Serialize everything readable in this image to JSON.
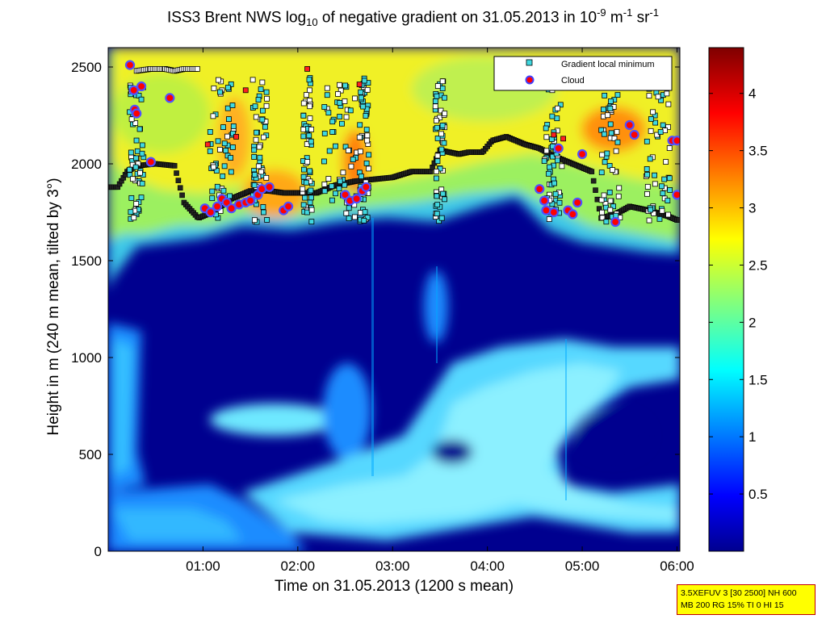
{
  "title": {
    "pre": "ISS3 Brent NWS log",
    "sub": "10",
    "mid": " of negative gradient on 31.05.2013 in 10",
    "sup1": "-9",
    "mid2": " m",
    "sup2": "-1",
    "mid3": " sr",
    "sup3": "-1"
  },
  "settings_box": {
    "line1": "3.5XEFUV 3 [30 2500] NH 600",
    "line2": "MB 200 RG 15% TI 0 HI 15"
  },
  "chart_data": {
    "type": "heatmap",
    "xlabel": "Time on 31.05.2013 (1200 s mean)",
    "ylabel": "Height in m (240 m mean, tilted by 3°)",
    "x_ticks": [
      "01:00",
      "02:00",
      "03:00",
      "04:00",
      "05:00",
      "06:00"
    ],
    "x_tick_hours": [
      1,
      2,
      3,
      4,
      5,
      6
    ],
    "xlim_hours": [
      0.0,
      6.03
    ],
    "y_ticks": [
      0,
      500,
      1000,
      1500,
      2000,
      2500
    ],
    "ylim": [
      0,
      2600
    ],
    "colorbar": {
      "ticks": [
        0.5,
        1,
        1.5,
        2,
        2.5,
        3,
        3.5,
        4
      ],
      "tick_labels": [
        "0.5",
        "1",
        "1.5",
        "2",
        "2.5",
        "3",
        "3.5",
        "4"
      ],
      "range": [
        0,
        4.4
      ],
      "colormap": "jet"
    },
    "legend": {
      "position": "top-right",
      "entries": [
        {
          "label": "Gradient local minimum",
          "marker": "cyan-square",
          "color": "#40d8e0"
        },
        {
          "label": "Cloud",
          "marker": "red-dot-blue-ring",
          "color": "#ff0000"
        }
      ]
    },
    "gradient_minimum_line": [
      [
        0.0,
        1880
      ],
      [
        0.1,
        1880
      ],
      [
        0.2,
        1960
      ],
      [
        0.3,
        1990
      ],
      [
        0.5,
        2000
      ],
      [
        0.7,
        1990
      ],
      [
        0.8,
        1800
      ],
      [
        0.95,
        1720
      ],
      [
        1.1,
        1750
      ],
      [
        1.3,
        1820
      ],
      [
        1.5,
        1860
      ],
      [
        1.7,
        1860
      ],
      [
        1.85,
        1850
      ],
      [
        2.0,
        1850
      ],
      [
        2.2,
        1850
      ],
      [
        2.4,
        1890
      ],
      [
        2.6,
        1910
      ],
      [
        2.8,
        1920
      ],
      [
        3.0,
        1930
      ],
      [
        3.2,
        1960
      ],
      [
        3.4,
        1960
      ],
      [
        3.5,
        2070
      ],
      [
        3.7,
        2050
      ],
      [
        3.8,
        2060
      ],
      [
        3.95,
        2060
      ],
      [
        4.05,
        2120
      ],
      [
        4.2,
        2140
      ],
      [
        4.4,
        2100
      ],
      [
        4.55,
        2080
      ],
      [
        4.7,
        2040
      ],
      [
        4.9,
        2000
      ],
      [
        5.1,
        1960
      ],
      [
        5.2,
        1720
      ],
      [
        5.35,
        1740
      ],
      [
        5.5,
        1780
      ],
      [
        5.7,
        1760
      ],
      [
        5.9,
        1730
      ],
      [
        6.0,
        1710
      ]
    ],
    "gradient_minimum_upper_line": [
      [
        0.3,
        2480
      ],
      [
        0.45,
        2490
      ],
      [
        0.6,
        2490
      ],
      [
        0.7,
        2480
      ],
      [
        0.8,
        2490
      ],
      [
        0.95,
        2490
      ]
    ],
    "cloud_points": [
      [
        0.23,
        2510
      ],
      [
        0.27,
        2380
      ],
      [
        0.28,
        2280
      ],
      [
        0.3,
        2260
      ],
      [
        0.35,
        2400
      ],
      [
        0.45,
        2010
      ],
      [
        0.65,
        2340
      ],
      [
        1.02,
        1770
      ],
      [
        1.08,
        1750
      ],
      [
        1.15,
        1780
      ],
      [
        1.2,
        1820
      ],
      [
        1.25,
        1800
      ],
      [
        1.3,
        1770
      ],
      [
        1.38,
        1790
      ],
      [
        1.45,
        1800
      ],
      [
        1.5,
        1810
      ],
      [
        1.58,
        1840
      ],
      [
        1.62,
        1870
      ],
      [
        1.7,
        1880
      ],
      [
        1.85,
        1760
      ],
      [
        1.9,
        1780
      ],
      [
        2.5,
        1840
      ],
      [
        2.55,
        1810
      ],
      [
        2.62,
        1820
      ],
      [
        2.68,
        1860
      ],
      [
        2.72,
        1880
      ],
      [
        4.55,
        1870
      ],
      [
        4.6,
        1810
      ],
      [
        4.62,
        1760
      ],
      [
        4.7,
        1750
      ],
      [
        4.75,
        2080
      ],
      [
        4.85,
        1760
      ],
      [
        4.9,
        1740
      ],
      [
        4.95,
        1800
      ],
      [
        5.0,
        2050
      ],
      [
        5.35,
        1700
      ],
      [
        5.5,
        2200
      ],
      [
        5.55,
        2150
      ],
      [
        5.95,
        2120
      ],
      [
        6.0,
        2120
      ],
      [
        6.0,
        1840
      ]
    ],
    "field_regions": [
      {
        "desc": "base",
        "value": 0.0
      },
      {
        "hours": [
          0.0,
          6.03
        ],
        "height": [
          1550,
          2600
        ],
        "value": 2.2
      },
      {
        "hours": [
          0.0,
          0.3
        ],
        "height": [
          0,
          1400
        ],
        "value": 1.4
      },
      {
        "hours": [
          1.1,
          2.6
        ],
        "height": [
          480,
          700
        ],
        "value": 1.6
      },
      {
        "hours": [
          2.4,
          4.5
        ],
        "height": [
          0,
          1100
        ],
        "value": 1.7
      },
      {
        "hours": [
          4.4,
          6.0
        ],
        "height": [
          400,
          1150
        ],
        "value": 1.6
      }
    ]
  }
}
